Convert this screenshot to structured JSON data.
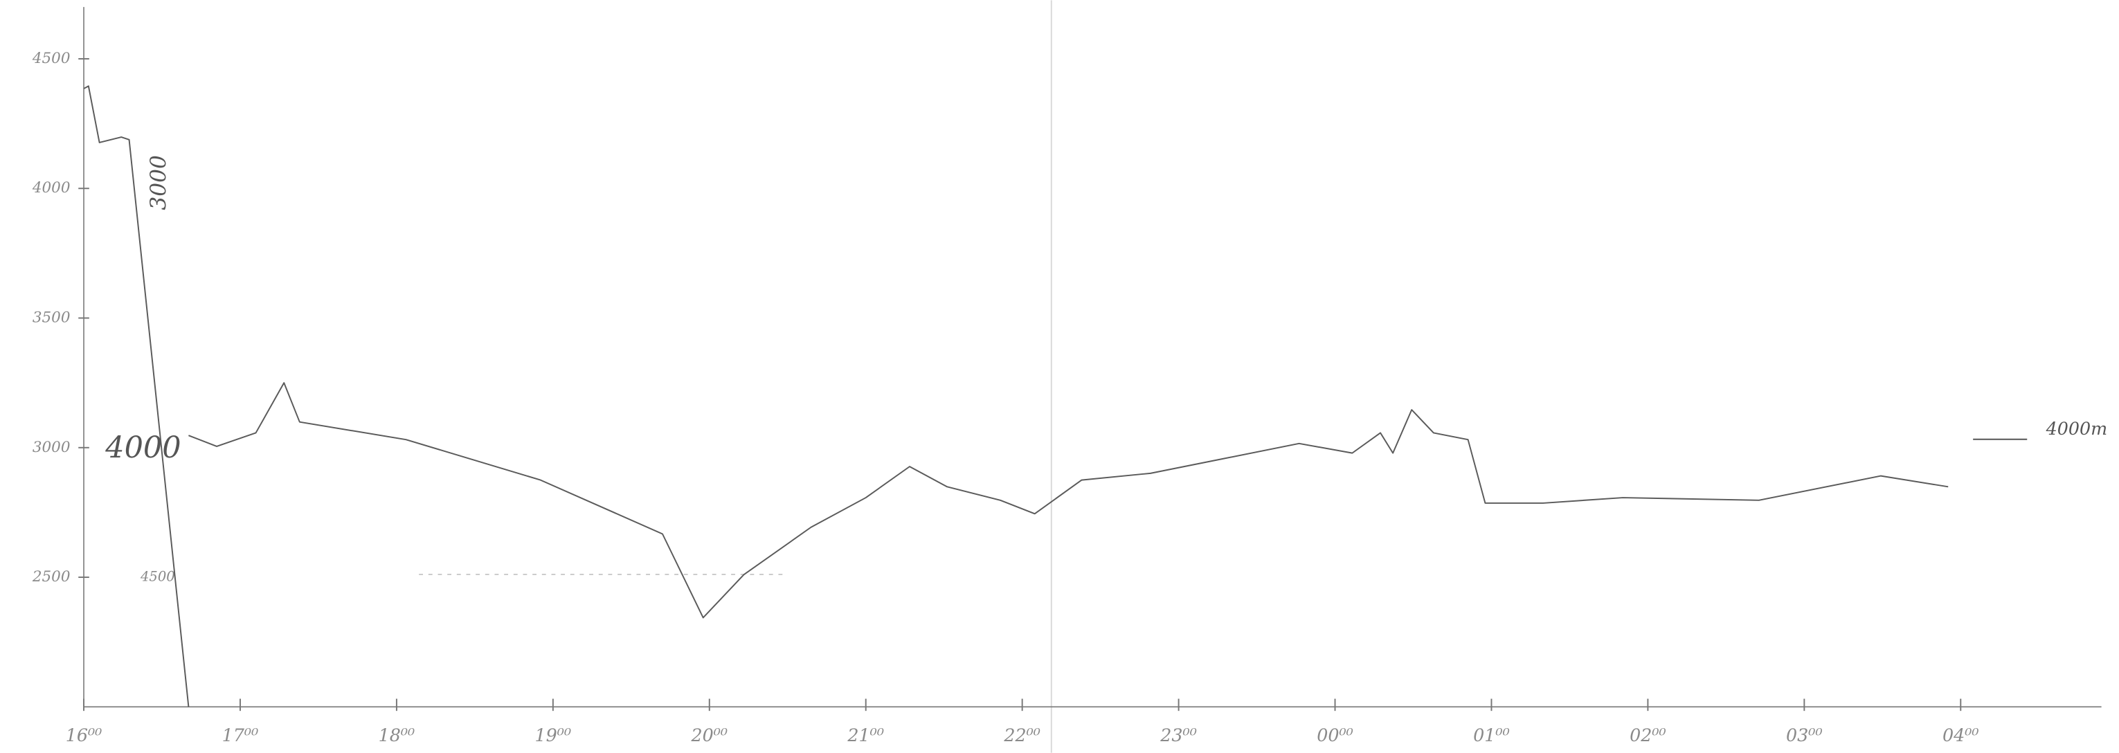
{
  "chart_data": {
    "type": "line",
    "x": [
      16.0,
      16.03,
      16.1,
      16.24,
      16.29,
      16.67,
      16.67,
      16.67,
      16.85,
      17.1,
      17.28,
      17.38,
      18.06,
      18.92,
      19.7,
      19.96,
      20.22,
      20.65,
      21.0,
      21.28,
      21.52,
      21.86,
      22.08,
      22.38,
      22.82,
      23.25,
      23.77,
      24.11,
      24.29,
      24.37,
      24.49,
      24.63,
      24.85,
      24.96,
      25.33,
      25.84,
      26.71,
      27.49,
      27.92
    ],
    "series": [
      {
        "color": "#5a5a5a",
        "values": [
          4385,
          4395,
          4177,
          4198,
          4188,
          2000,
          null,
          3047,
          3005,
          3057,
          3250,
          3099,
          3031,
          2875,
          2667,
          2344,
          2510,
          2693,
          2807,
          2927,
          2849,
          2797,
          2745,
          2875,
          2901,
          2953,
          3016,
          2979,
          3057,
          2979,
          3146,
          3057,
          3031,
          2786,
          2786,
          2807,
          2797,
          2891,
          2849
        ]
      }
    ],
    "xlim": [
      16,
      28.9
    ],
    "xticks": [
      {
        "value": 16,
        "label": "16⁰⁰"
      },
      {
        "value": 17,
        "label": "17⁰⁰"
      },
      {
        "value": 18,
        "label": "18⁰⁰"
      },
      {
        "value": 19,
        "label": "19⁰⁰"
      },
      {
        "value": 20,
        "label": "20⁰⁰"
      },
      {
        "value": 21,
        "label": "21⁰⁰"
      },
      {
        "value": 22,
        "label": "22⁰⁰"
      },
      {
        "value": 23,
        "label": "23⁰⁰"
      },
      {
        "value": 24,
        "label": "00⁰⁰"
      },
      {
        "value": 25,
        "label": "01⁰⁰"
      },
      {
        "value": 26,
        "label": "02⁰⁰"
      },
      {
        "value": 27,
        "label": "03⁰⁰"
      },
      {
        "value": 28,
        "label": "04⁰⁰"
      }
    ],
    "ylim": [
      2000,
      4700
    ],
    "yticks": [
      2500,
      3000,
      3500,
      4000,
      4500
    ],
    "annotations": [
      "4000",
      "3000",
      "4500",
      "4000m"
    ]
  }
}
